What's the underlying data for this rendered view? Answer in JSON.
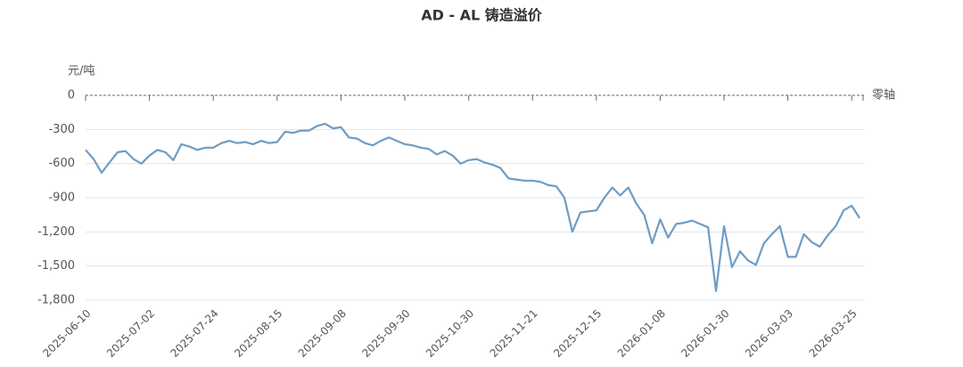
{
  "chart_data": {
    "type": "line",
    "title": "AD - AL 铸造溢价",
    "y_label": "元/吨",
    "zero_line_label": "零轴",
    "categories": [
      "2025-06-10",
      null,
      null,
      null,
      null,
      null,
      null,
      null,
      "2025-07-02",
      null,
      null,
      null,
      null,
      null,
      null,
      null,
      "2025-07-24",
      null,
      null,
      null,
      null,
      null,
      null,
      null,
      "2025-08-15",
      null,
      null,
      null,
      null,
      null,
      null,
      null,
      "2025-09-08",
      null,
      null,
      null,
      null,
      null,
      null,
      null,
      "2025-09-30",
      null,
      null,
      null,
      null,
      null,
      null,
      null,
      "2025-10-30",
      null,
      null,
      null,
      null,
      null,
      null,
      null,
      "2025-11-21",
      null,
      null,
      null,
      null,
      null,
      null,
      null,
      "2025-12-15",
      null,
      null,
      null,
      null,
      null,
      null,
      null,
      "2026-01-08",
      null,
      null,
      null,
      null,
      null,
      null,
      null,
      "2026-01-30",
      null,
      null,
      null,
      null,
      null,
      null,
      null,
      "2026-03-03",
      null,
      null,
      null,
      null,
      null,
      null,
      null,
      "2026-03-25",
      null
    ],
    "series": [
      {
        "color": "#6f9cc3",
        "values": [
          -480,
          -560,
          -680,
          -590,
          -500,
          -490,
          -560,
          -600,
          -530,
          -480,
          -500,
          -570,
          -430,
          -450,
          -480,
          -460,
          -460,
          -420,
          -400,
          -420,
          -410,
          -430,
          -400,
          -420,
          -410,
          -320,
          -330,
          -310,
          -310,
          -270,
          -250,
          -290,
          -280,
          -370,
          -380,
          -420,
          -440,
          -400,
          -370,
          -400,
          -430,
          -440,
          -460,
          -470,
          -520,
          -490,
          -530,
          -600,
          -570,
          -560,
          -590,
          -610,
          -640,
          -730,
          -740,
          -750,
          -750,
          -760,
          -790,
          -800,
          -900,
          -1200,
          -1030,
          -1020,
          -1010,
          -900,
          -810,
          -880,
          -810,
          -950,
          -1050,
          -1300,
          -1090,
          -1250,
          -1130,
          -1120,
          -1100,
          -1130,
          -1160,
          -1720,
          -1150,
          -1510,
          -1370,
          -1450,
          -1490,
          -1300,
          -1220,
          -1150,
          -1420,
          -1420,
          -1220,
          -1290,
          -1330,
          -1230,
          -1150,
          -1010,
          -970,
          -1080
        ]
      }
    ],
    "ylim": [
      -1800,
      0
    ],
    "yticks": [
      {
        "value": -1800,
        "label": "-1,800"
      },
      {
        "value": -1500,
        "label": "-1,500"
      },
      {
        "value": -1200,
        "label": "-1,200"
      },
      -900,
      -600,
      -300,
      0
    ],
    "grid": true
  }
}
